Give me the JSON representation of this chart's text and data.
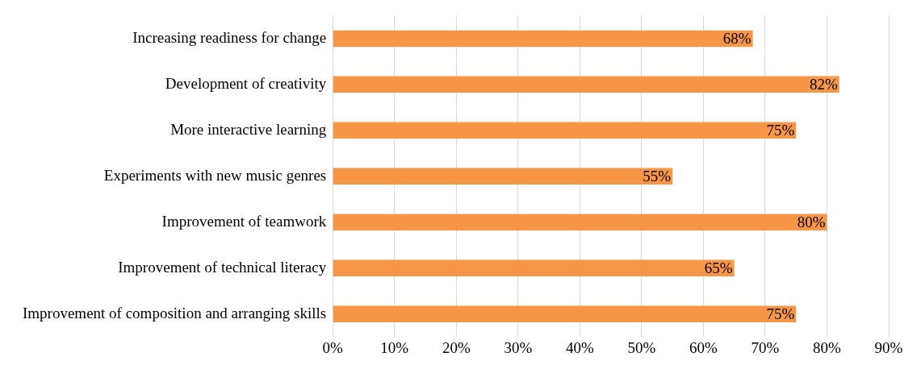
{
  "chart_data": {
    "type": "bar",
    "orientation": "horizontal",
    "categories": [
      "Increasing readiness for change",
      "Development of creativity",
      "More interactive learning",
      "Experiments with new music genres",
      "Improvement of teamwork",
      "Improvement of technical literacy",
      "Improvement of composition and arranging skills"
    ],
    "values": [
      68,
      82,
      75,
      55,
      80,
      65,
      75
    ],
    "value_labels": [
      "68%",
      "82%",
      "75%",
      "55%",
      "80%",
      "65%",
      "75%"
    ],
    "color": "#f79646",
    "xlim": [
      0,
      90
    ],
    "xticks": [
      {
        "value": 0,
        "label": "0%"
      },
      {
        "value": 10,
        "label": "10%"
      },
      {
        "value": 20,
        "label": "20%"
      },
      {
        "value": 30,
        "label": "30%"
      },
      {
        "value": 40,
        "label": "40%"
      },
      {
        "value": 50,
        "label": "50%"
      },
      {
        "value": 60,
        "label": "60%"
      },
      {
        "value": 70,
        "label": "70%"
      },
      {
        "value": 80,
        "label": "80%"
      },
      {
        "value": 90,
        "label": "90%"
      }
    ],
    "grid": "x",
    "legend": false
  }
}
